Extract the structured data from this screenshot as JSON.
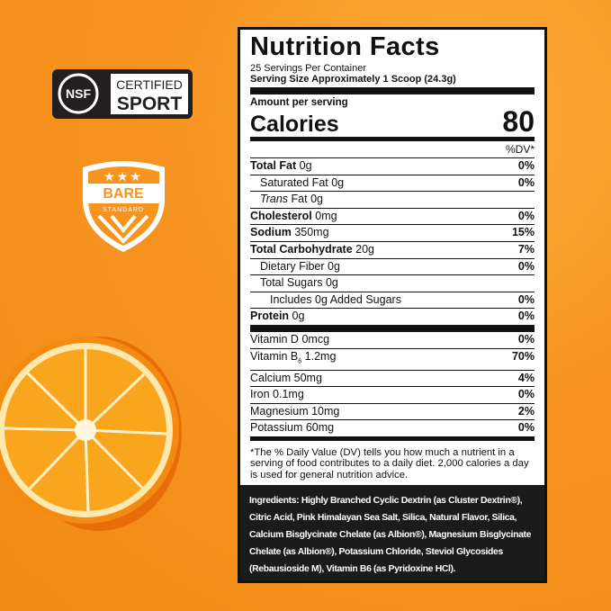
{
  "badges": {
    "nsf": {
      "logo": "NSF",
      "certified": "CERTIFIED",
      "sport": "SPORT"
    },
    "bare_standard": {
      "top": "BARE",
      "bottom": "STANDARD"
    }
  },
  "nutrition_label": {
    "title": "Nutrition Facts",
    "servings": "25 Servings Per Container",
    "serving_size": "Serving Size Approximately 1 Scoop (24.3g)",
    "amount_per_serving": "Amount per serving",
    "calories_label": "Calories",
    "calories_value": "80",
    "dv_header": "%DV*",
    "nutrients": [
      {
        "name": "Total Fat",
        "amount": "0g",
        "dv": "0%"
      },
      {
        "name": "Saturated Fat",
        "amount": "0g",
        "dv": "0%"
      },
      {
        "italic": "Trans",
        "name": "Fat",
        "amount": "0g"
      },
      {
        "name": "Cholesterol",
        "amount": "0mg",
        "dv": "0%"
      },
      {
        "name": "Sodium",
        "amount": "350mg",
        "dv": "15%"
      },
      {
        "name": "Total Carbohydrate",
        "amount": "20g",
        "dv": "7%"
      },
      {
        "name": "Dietary Fiber",
        "amount": "0g",
        "dv": "0%"
      },
      {
        "name": "Total Sugars",
        "amount": "0g"
      },
      {
        "name": "Includes 0g Added Sugars",
        "dv": "0%"
      },
      {
        "name": "Protein",
        "amount": "0g",
        "dv": "0%"
      }
    ],
    "vitamins": [
      {
        "name": "Vitamin D",
        "amount": "0mcg",
        "dv": "0%"
      },
      {
        "name": "Vitamin B",
        "sub": "6",
        "amount": "1.2mg",
        "dv": "70%"
      },
      {
        "name": "Calcium",
        "amount": "50mg",
        "dv": "4%"
      },
      {
        "name": "Iron",
        "amount": "0.1mg",
        "dv": "0%"
      },
      {
        "name": "Magnesium",
        "amount": "10mg",
        "dv": "2%"
      },
      {
        "name": "Potassium",
        "amount": "60mg",
        "dv": "0%"
      }
    ],
    "footnote": "*The % Daily Value (DV) tells you how much a nutrient in a serving of food contributes to a daily diet. 2,000 calories a day is used for general nutrition advice.",
    "ingredients_label": "Ingredients:",
    "ingredients": "Highly Branched Cyclic Dextrin (as Cluster Dextrin®), Citric Acid, Pink Himalayan Sea Salt, Silica, Natural Flavor, Silica, Calcium Bisglycinate Chelate (as Albion®), Magnesium Bisglycinate Chelate (as Albion®), Potassium Chloride, Steviol Glycosides (Rebausioside M), Vitamin B6 (as Pyridoxine HCl)."
  }
}
